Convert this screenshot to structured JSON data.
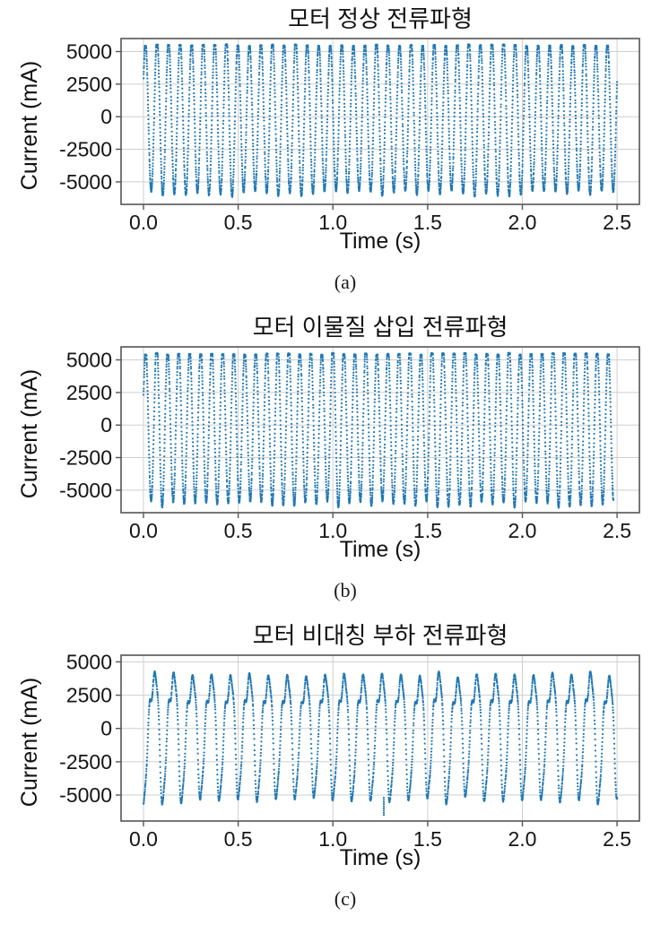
{
  "palette": {
    "line_color": "#1f77b4",
    "grid_color": "#cfcfcf",
    "spine_color": "#555555",
    "text_color": "#151515",
    "background": "#ffffff"
  },
  "chart_data": [
    {
      "type": "line",
      "title": "모터 정상 전류파형",
      "caption": "(a)",
      "xlabel": "Time (s)",
      "ylabel": "Current (mA)",
      "xlim": [
        -0.1185,
        2.618
      ],
      "ylim": [
        -6730,
        6000
      ],
      "xticks": [
        0.0,
        0.5,
        1.0,
        1.5,
        2.0,
        2.5
      ],
      "xtick_labels": [
        "0.0",
        "0.5",
        "1.0",
        "1.5",
        "2.0",
        "2.5"
      ],
      "yticks": [
        5000,
        2500,
        0,
        -2500,
        -5000
      ],
      "ytick_labels": [
        "5000",
        "2500",
        "0",
        "-2500",
        "-5000"
      ],
      "grid": true,
      "marker": "dot",
      "legend": "none",
      "signal": {
        "kind": "clipped_sine",
        "seed": 101,
        "fundamental_hz": 16.4,
        "phase_rad": 0.55,
        "amplitude_mA": 5900,
        "amplitude_jitter_mA": 250,
        "clip_top_mA": 5450,
        "noise_mA": 60,
        "t_start_s": 0.0,
        "t_end_s": 2.5,
        "sample_interval_s": 0.0005
      }
    },
    {
      "type": "line",
      "title": "모터 이물질 삽입 전류파형",
      "caption": "(b)",
      "xlabel": "Time (s)",
      "ylabel": "Current (mA)",
      "xlim": [
        -0.1185,
        2.618
      ],
      "ylim": [
        -6730,
        6000
      ],
      "xticks": [
        0.0,
        0.5,
        1.0,
        1.5,
        2.0,
        2.5
      ],
      "xtick_labels": [
        "0.0",
        "0.5",
        "1.0",
        "1.5",
        "2.0",
        "2.5"
      ],
      "yticks": [
        5000,
        2500,
        0,
        -2500,
        -5000
      ],
      "ytick_labels": [
        "5000",
        "2500",
        "0",
        "-2500",
        "-5000"
      ],
      "grid": true,
      "marker": "dot",
      "legend": "none",
      "signal": {
        "kind": "clipped_sine",
        "seed": 202,
        "fundamental_hz": 17.2,
        "phase_rad": 0.4,
        "amplitude_mA": 6050,
        "amplitude_jitter_mA": 280,
        "clip_top_mA": 5420,
        "noise_mA": 60,
        "t_start_s": 0.0,
        "t_end_s": 2.48,
        "sample_interval_s": 0.0005
      }
    },
    {
      "type": "line",
      "title": "모터 비대칭 부하 전류파형",
      "caption": "(c)",
      "xlabel": "Time (s)",
      "ylabel": "Current (mA)",
      "xlim": [
        -0.1185,
        2.618
      ],
      "ylim": [
        -6950,
        5500
      ],
      "xticks": [
        0.0,
        0.5,
        1.0,
        1.5,
        2.0,
        2.5
      ],
      "xtick_labels": [
        "0.0",
        "0.5",
        "1.0",
        "1.5",
        "2.0",
        "2.5"
      ],
      "yticks": [
        5000,
        2500,
        0,
        -2500,
        -5000
      ],
      "ytick_labels": [
        "5000",
        "2500",
        "0",
        "-2500",
        "-5000"
      ],
      "grid": true,
      "marker": "dot",
      "legend": "none",
      "signal": {
        "kind": "asymmetric_sine",
        "seed": 303,
        "fundamental_hz": 10.0,
        "phase_rad": -1.8,
        "amplitude_mA": 4300,
        "amplitude_jitter_mA": 250,
        "harmonics": [
          [
            1,
            1.0,
            0.0
          ],
          [
            2,
            0.28,
            2.2
          ],
          [
            4,
            0.1,
            1.0
          ]
        ],
        "noise_mA": 50,
        "t_start_s": 0.0,
        "t_end_s": 2.5,
        "sample_interval_s": 0.0008,
        "outlier": {
          "t_s": 1.268,
          "from_mA": -5200,
          "value_mA": -6500
        }
      }
    }
  ]
}
